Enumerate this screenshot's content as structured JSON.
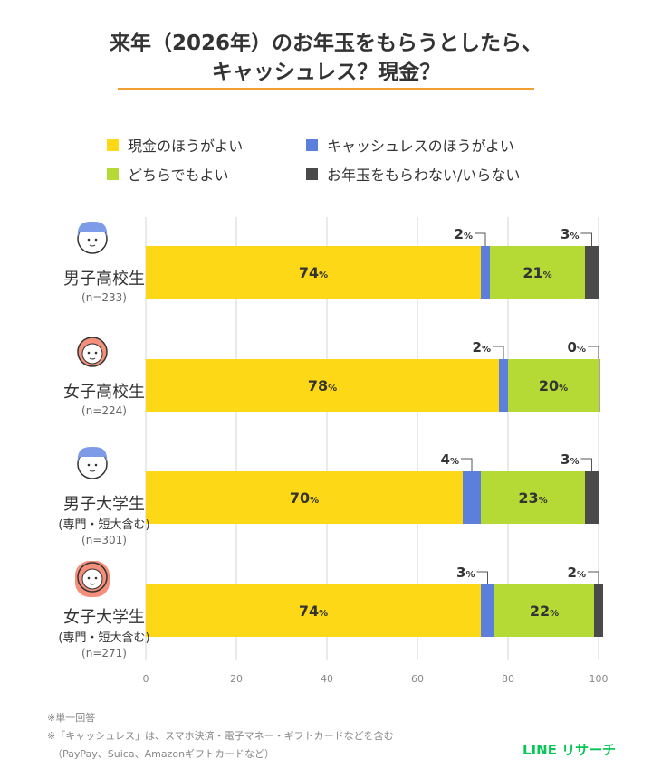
{
  "title": {
    "line1": "来年（2026年）のお年玉をもらうとしたら、",
    "line2": "キャッシュレス？現金？"
  },
  "colors": {
    "cash": "#FCD817",
    "cashless": "#5B7FDB",
    "either": "#B5D935",
    "none": "#4A4A4A",
    "underline": "#F0A030"
  },
  "chart_data": {
    "type": "bar",
    "orientation": "horizontal",
    "stacked": true,
    "xlim": [
      0,
      100
    ],
    "xticks": [
      0,
      20,
      40,
      60,
      80,
      100
    ],
    "grid": true,
    "legend_position": "top",
    "unit": "%",
    "categories": [
      {
        "name": "男子高校生",
        "sub": "",
        "n": "(n=233)",
        "icon": "boy-face-icon"
      },
      {
        "name": "女子高校生",
        "sub": "",
        "n": "(n=224)",
        "icon": "girl-face-icon"
      },
      {
        "name": "男子大学生",
        "sub": "(専門・短大含む)",
        "n": "(n=301)",
        "icon": "man-face-icon"
      },
      {
        "name": "女子大学生",
        "sub": "(専門・短大含む)",
        "n": "(n=271)",
        "icon": "woman-face-icon"
      }
    ],
    "series": [
      {
        "name": "現金のほうがよい",
        "values": [
          74,
          78,
          70,
          74
        ]
      },
      {
        "name": "キャッシュレスのほうがよい",
        "values": [
          2,
          2,
          4,
          3
        ]
      },
      {
        "name": "どちらでもよい",
        "values": [
          21,
          20,
          23,
          22
        ]
      },
      {
        "name": "お年玉をもらわない/いらない",
        "values": [
          3,
          0,
          3,
          2
        ]
      }
    ]
  },
  "footnotes": [
    "※単一回答",
    "※「キャッシュレス」は、スマホ決済・電子マネー・ギフトカードなどを含む",
    "（PayPay、Suica、Amazonギフトカードなど）"
  ],
  "brand": "LINE リサーチ"
}
